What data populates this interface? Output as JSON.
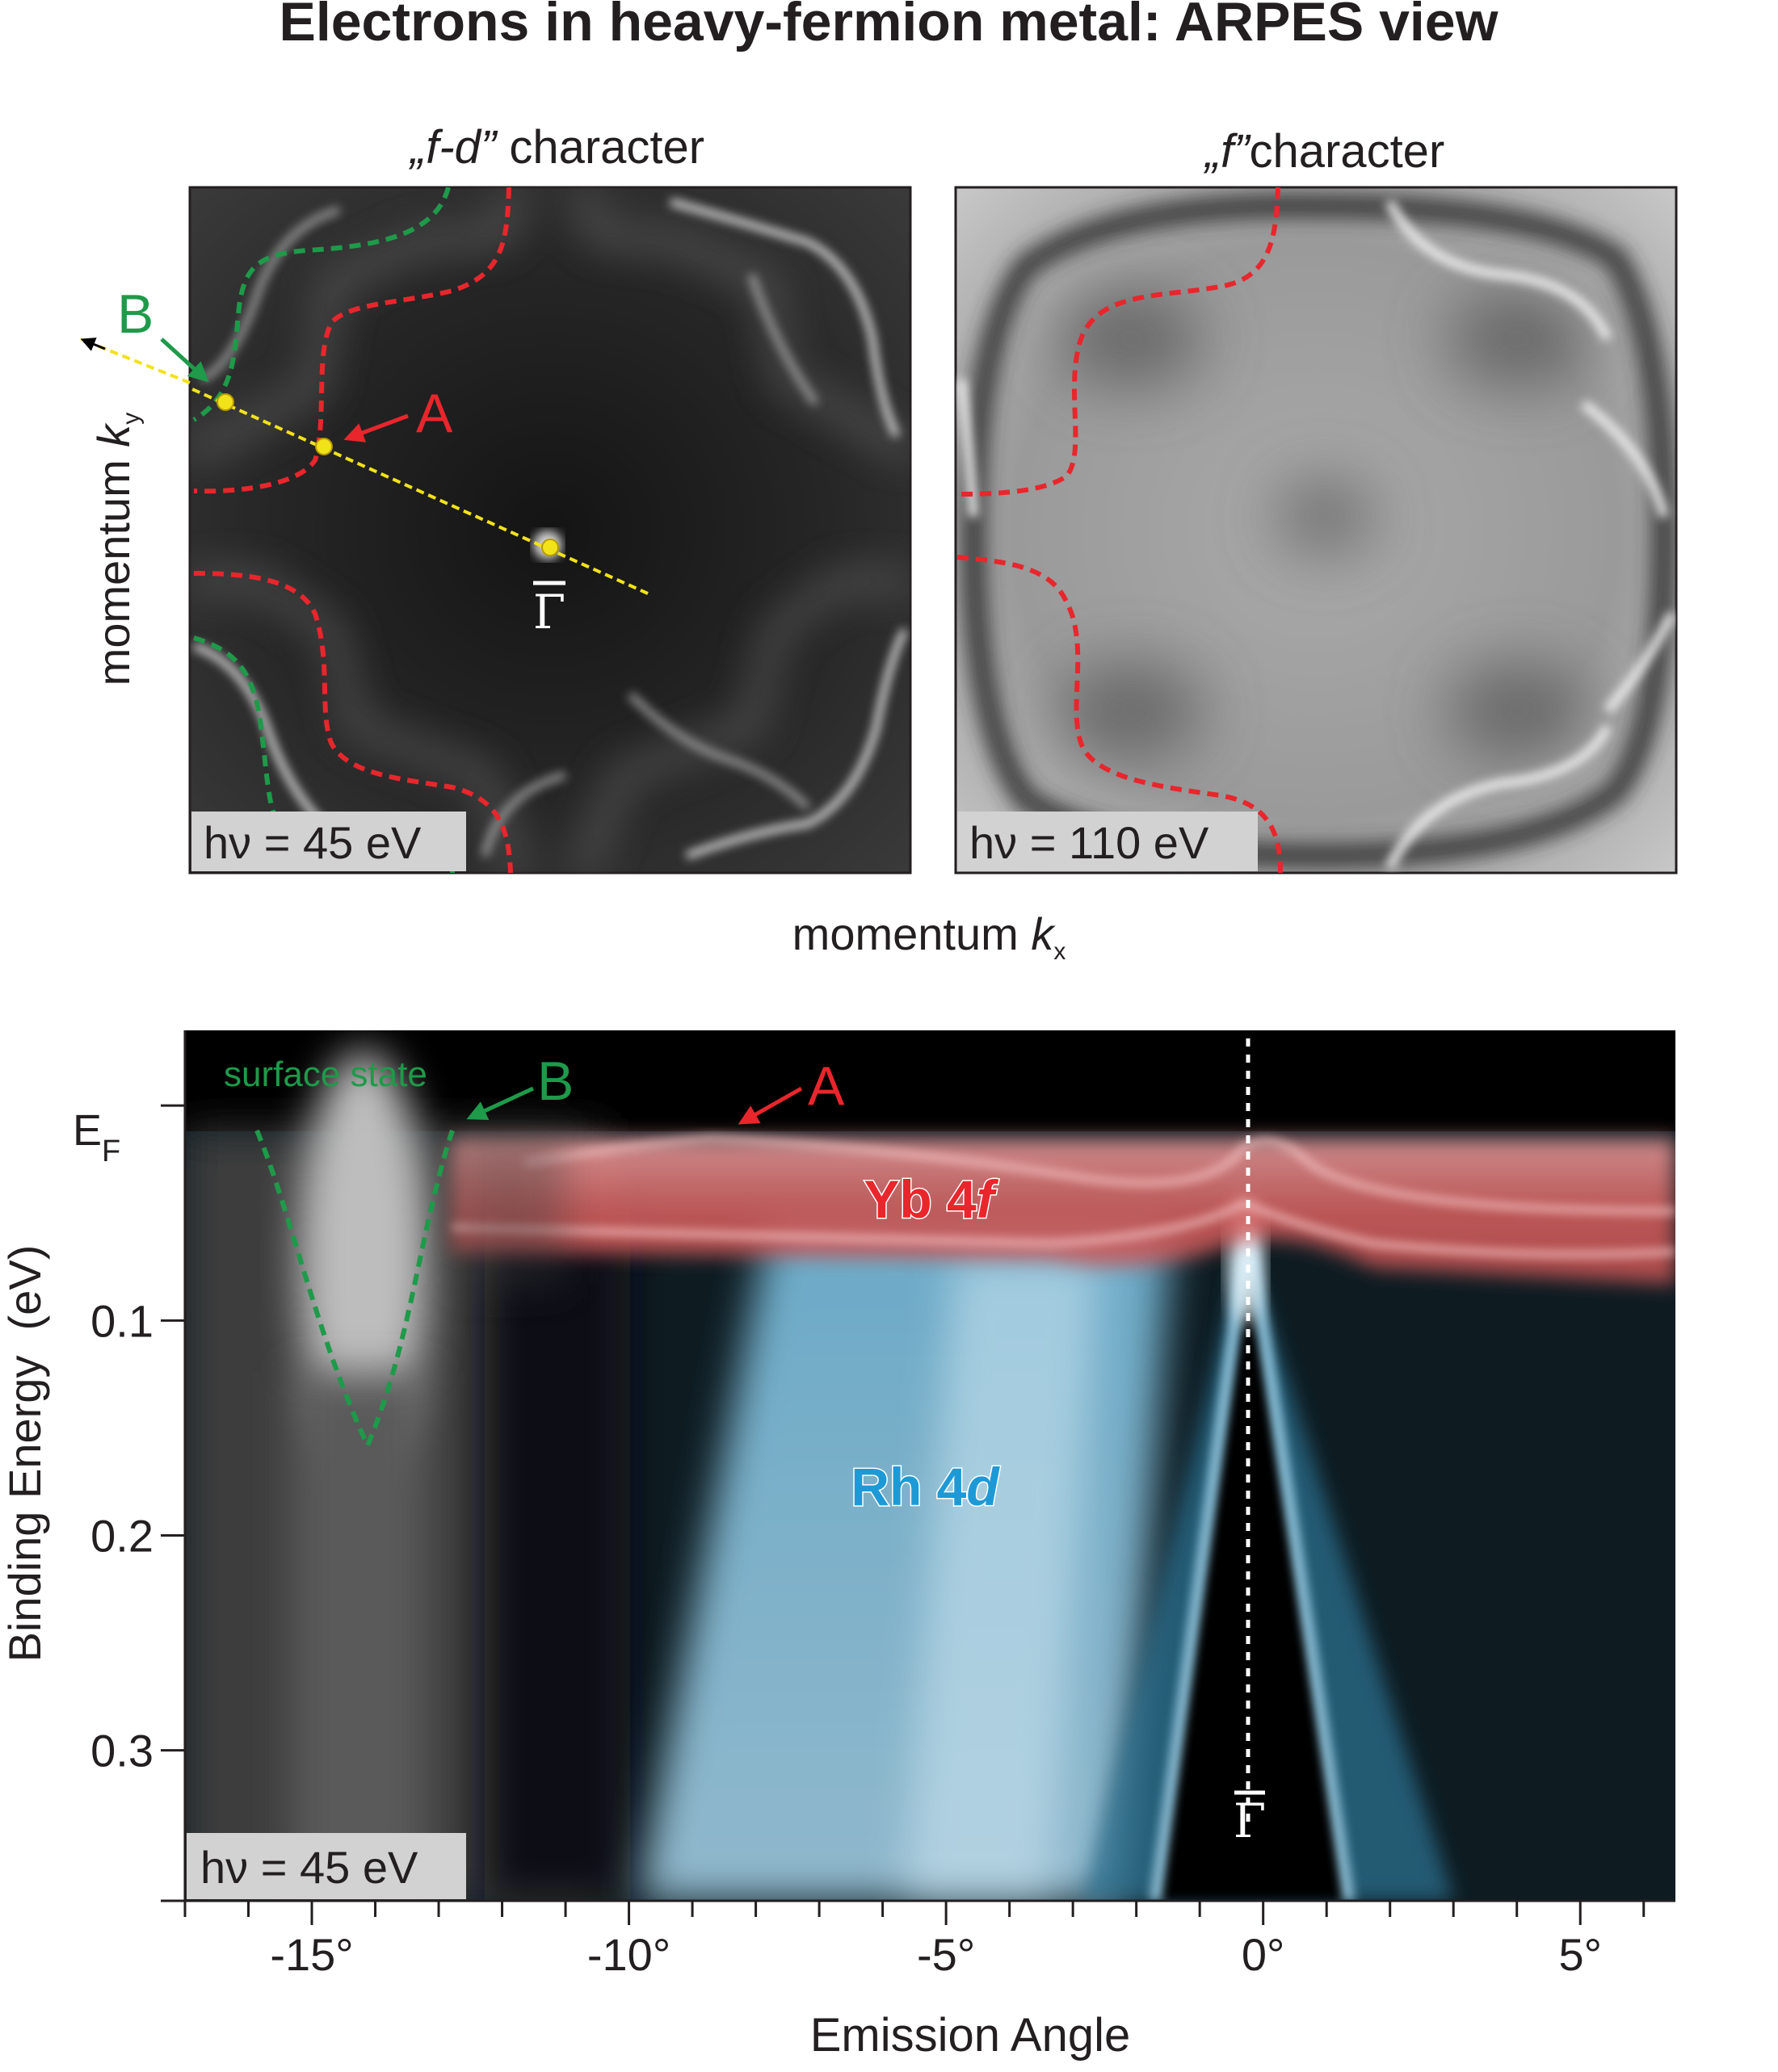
{
  "title": "Electrons in heavy-fermion metal: ARPES view",
  "left_map": {
    "caption_prefix": "„f-d”",
    "caption_suffix": " character",
    "photon_energy": "hν = 45 eV",
    "label_A": "A",
    "label_B": "B",
    "gamma": "Γ"
  },
  "right_map": {
    "caption_prefix": "„f”",
    "caption_suffix": "character",
    "photon_energy": "hν = 110 eV"
  },
  "ky_label": "momentum ",
  "ky_symbol": "k",
  "ky_sub": "y",
  "kx_label": "momentum ",
  "kx_symbol": "k",
  "kx_sub": "x",
  "band_plot": {
    "surface_state": "surface state",
    "label_B": "B",
    "label_A": "A",
    "yb_label": "Yb 4",
    "yb_italic": "f",
    "rh_label": "Rh 4",
    "rh_italic": "d",
    "gamma": "Γ",
    "photon_energy": "hν = 45 eV",
    "ef": "E",
    "ef_sub": "F"
  },
  "colors": {
    "green": "#1e9a4a",
    "red": "#e8262c",
    "yellow": "#f2e21a",
    "yb": "#e06b6b",
    "rh": "#63b9e0"
  },
  "chart_data": {
    "type": "heatmap",
    "xlabel": "Emission Angle",
    "ylabel": "Binding Energy  (eV)",
    "x_ticks": [
      {
        "value": -15,
        "label": "-15°"
      },
      {
        "value": -10,
        "label": "-10°"
      },
      {
        "value": -5,
        "label": "-5°"
      },
      {
        "value": 0,
        "label": "0°"
      },
      {
        "value": 5,
        "label": "5°"
      }
    ],
    "y_ticks": [
      {
        "value": 0,
        "label": "E"
      },
      {
        "value": 0.1,
        "label": "0.1"
      },
      {
        "value": 0.2,
        "label": "0.2"
      },
      {
        "value": 0.3,
        "label": "0.3"
      }
    ],
    "xlim": [
      -17,
      6.5
    ],
    "ylim": [
      0.37,
      -0.035
    ]
  }
}
